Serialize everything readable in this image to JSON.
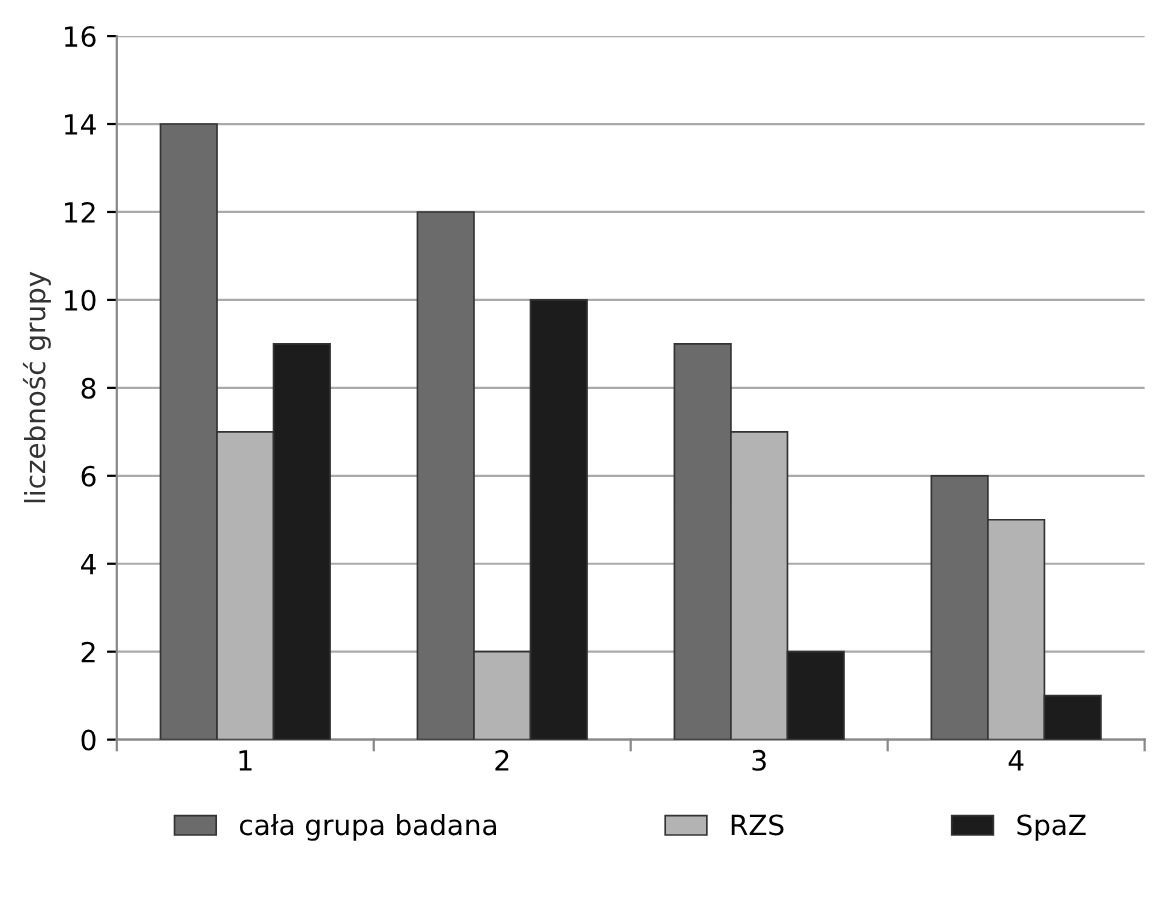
{
  "chart_data": {
    "type": "bar",
    "ylabel": "liczebność grupy",
    "categories": [
      "1",
      "2",
      "3",
      "4"
    ],
    "series": [
      {
        "name": "cała grupa badana",
        "color": "#6b6b6b",
        "values": [
          14,
          12,
          9,
          6
        ]
      },
      {
        "name": "RZS",
        "color": "#b3b3b3",
        "values": [
          7,
          2,
          7,
          5
        ]
      },
      {
        "name": "SpaZ",
        "color": "#1c1c1c",
        "values": [
          9,
          10,
          2,
          1
        ]
      }
    ],
    "ylim": [
      0,
      16
    ],
    "yticks": [
      0,
      2,
      4,
      6,
      8,
      10,
      12,
      14,
      16
    ],
    "grid": "y",
    "legend": "bottom"
  }
}
